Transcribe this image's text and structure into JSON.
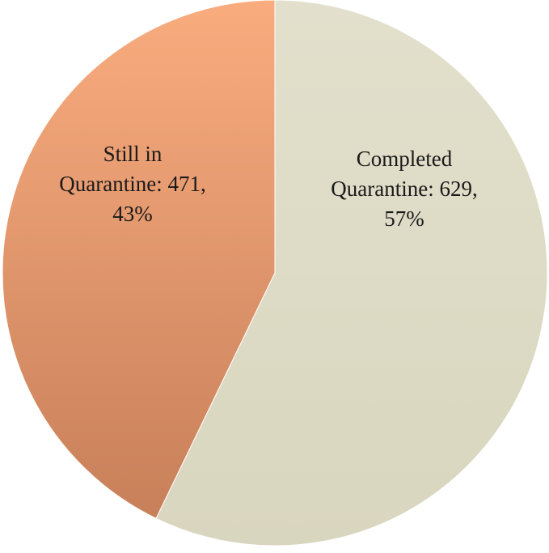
{
  "chart_data": {
    "type": "pie",
    "title": "",
    "start_angle_deg": 90,
    "direction": "clockwise",
    "slices": [
      {
        "label": "Completed Quarantine",
        "value": 629,
        "percent": 57,
        "color": "#dddbc6",
        "label_lines": [
          "Completed",
          "Quarantine: 629,",
          "57%"
        ]
      },
      {
        "label": "Still in Quarantine",
        "value": 471,
        "percent": 43,
        "color": "#e59a70",
        "label_lines": [
          "Still in",
          "Quarantine: 471,",
          "43%"
        ]
      }
    ]
  }
}
